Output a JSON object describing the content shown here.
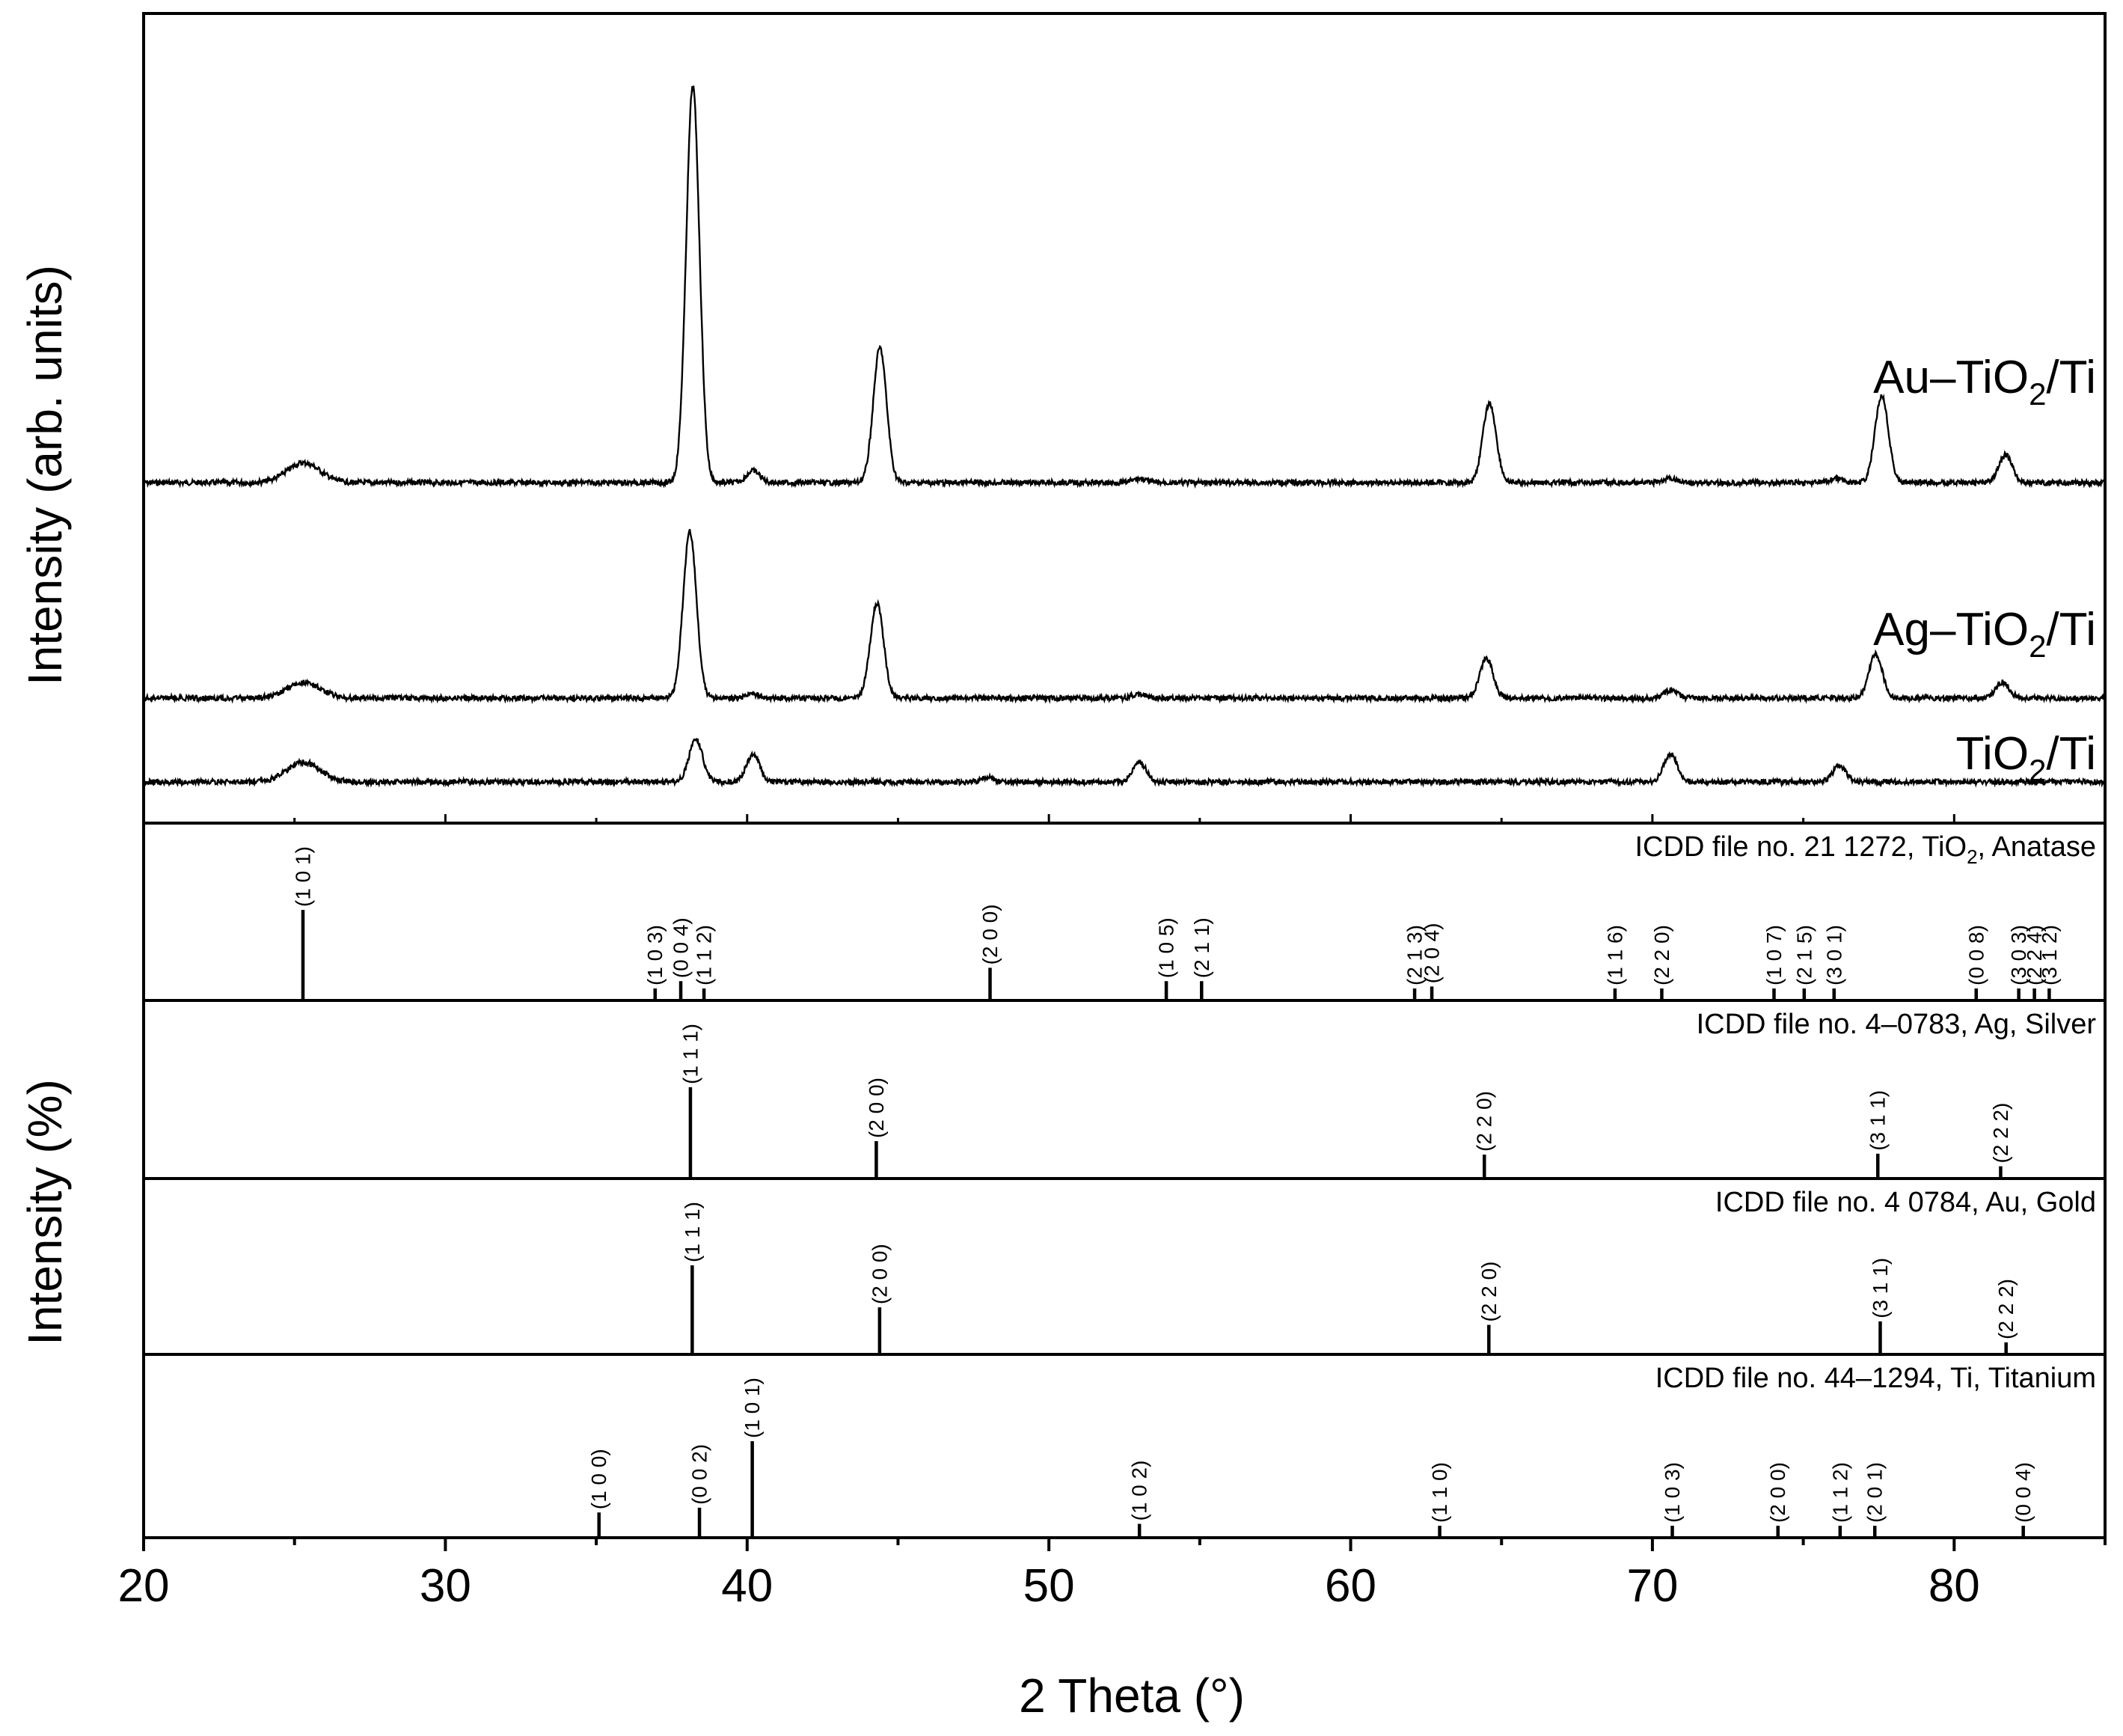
{
  "chart_data": [
    {
      "type": "line",
      "xlabel": "2 Theta (°)",
      "ylabel": "Intensity (arb. units)",
      "xlim": [
        20,
        85
      ],
      "x_ticks": [
        "20",
        "30",
        "40",
        "50",
        "60",
        "70",
        "80"
      ],
      "series": [
        {
          "name": "Au–TiO2/Ti",
          "label_parts": [
            "Au–TiO",
            "2",
            "/Ti"
          ],
          "peaks": [
            {
              "x": 25.3,
              "h": 0.05
            },
            {
              "x": 38.2,
              "h": 1.0
            },
            {
              "x": 40.2,
              "h": 0.03
            },
            {
              "x": 44.4,
              "h": 0.34
            },
            {
              "x": 53.0,
              "h": 0.01
            },
            {
              "x": 64.6,
              "h": 0.2
            },
            {
              "x": 70.6,
              "h": 0.01
            },
            {
              "x": 76.1,
              "h": 0.01
            },
            {
              "x": 77.6,
              "h": 0.22
            },
            {
              "x": 81.7,
              "h": 0.07
            }
          ]
        },
        {
          "name": "Ag–TiO2/Ti",
          "label_parts": [
            "Ag–TiO",
            "2",
            "/Ti"
          ],
          "peaks": [
            {
              "x": 25.3,
              "h": 0.04
            },
            {
              "x": 38.1,
              "h": 0.42
            },
            {
              "x": 40.2,
              "h": 0.01
            },
            {
              "x": 44.3,
              "h": 0.24
            },
            {
              "x": 53.0,
              "h": 0.01
            },
            {
              "x": 64.5,
              "h": 0.1
            },
            {
              "x": 70.6,
              "h": 0.02
            },
            {
              "x": 77.4,
              "h": 0.11
            },
            {
              "x": 81.6,
              "h": 0.04
            }
          ]
        },
        {
          "name": "TiO2/Ti",
          "label_parts": [
            "TiO",
            "2",
            "/Ti"
          ],
          "peaks": [
            {
              "x": 25.3,
              "h": 0.05
            },
            {
              "x": 38.3,
              "h": 0.11
            },
            {
              "x": 40.2,
              "h": 0.07
            },
            {
              "x": 48.0,
              "h": 0.01
            },
            {
              "x": 53.0,
              "h": 0.05
            },
            {
              "x": 70.6,
              "h": 0.07
            },
            {
              "x": 76.2,
              "h": 0.04
            }
          ]
        }
      ]
    },
    {
      "type": "bar",
      "xlabel": "2 Theta (°)",
      "ylabel": "Intensity (%)",
      "xlim": [
        20,
        85
      ],
      "ylim": [
        0,
        100
      ],
      "panels": [
        {
          "title": "ICDD file no. 21 1272, TiO2, Anatase",
          "title_parts": [
            "ICDD file no. 21  1272, TiO",
            "2",
            ", Anatase"
          ],
          "lines": [
            {
              "x": 25.28,
              "i": 100,
              "hkl": "(1 0 1)"
            },
            {
              "x": 36.95,
              "i": 10,
              "hkl": "(1 0 3)"
            },
            {
              "x": 37.8,
              "i": 20,
              "hkl": "(0 0 4)"
            },
            {
              "x": 38.57,
              "i": 10,
              "hkl": "(1 1 2)"
            },
            {
              "x": 48.05,
              "i": 35,
              "hkl": "(2 0 0)"
            },
            {
              "x": 53.89,
              "i": 20,
              "hkl": "(1 0 5)"
            },
            {
              "x": 55.06,
              "i": 20,
              "hkl": "(2 1 1)"
            },
            {
              "x": 62.12,
              "i": 4,
              "hkl": "(2 1 3)"
            },
            {
              "x": 62.69,
              "i": 14,
              "hkl": "(2 0 4)"
            },
            {
              "x": 68.76,
              "i": 6,
              "hkl": "(1 1 6)"
            },
            {
              "x": 70.31,
              "i": 6,
              "hkl": "(2 2 0)"
            },
            {
              "x": 74.03,
              "i": 4,
              "hkl": "(1 0 7)"
            },
            {
              "x": 75.03,
              "i": 10,
              "hkl": "(2 1 5)"
            },
            {
              "x": 76.02,
              "i": 4,
              "hkl": "(3 0 1)"
            },
            {
              "x": 80.73,
              "i": 2,
              "hkl": "(0 0 8)"
            },
            {
              "x": 82.14,
              "i": 4,
              "hkl": "(3 0 3)"
            },
            {
              "x": 82.66,
              "i": 6,
              "hkl": "(2 2 4)"
            },
            {
              "x": 83.15,
              "i": 4,
              "hkl": "(3 1 2)"
            }
          ]
        },
        {
          "title": "ICDD file no. 4–0783, Ag, Silver",
          "title_parts": [
            "ICDD file no. 4–0783, Ag, Silver",
            "",
            ""
          ],
          "lines": [
            {
              "x": 38.12,
              "i": 100,
              "hkl": "(1 1 1)"
            },
            {
              "x": 44.28,
              "i": 40,
              "hkl": "(2 0 0)"
            },
            {
              "x": 64.43,
              "i": 25,
              "hkl": "(2 2 0)"
            },
            {
              "x": 77.47,
              "i": 26,
              "hkl": "(3 1 1)"
            },
            {
              "x": 81.54,
              "i": 12,
              "hkl": "(2 2 2)"
            }
          ]
        },
        {
          "title": "ICDD file no. 4 0784, Au, Gold",
          "title_parts": [
            "ICDD file no. 4  0784, Au, Gold",
            "",
            ""
          ],
          "lines": [
            {
              "x": 38.18,
              "i": 100,
              "hkl": "(1 1 1)"
            },
            {
              "x": 44.39,
              "i": 52,
              "hkl": "(2 0 0)"
            },
            {
              "x": 64.58,
              "i": 32,
              "hkl": "(2 2 0)"
            },
            {
              "x": 77.55,
              "i": 36,
              "hkl": "(3 1 1)"
            },
            {
              "x": 81.72,
              "i": 12,
              "hkl": "(2 2 2)"
            }
          ]
        },
        {
          "title": "ICDD file no. 44–1294, Ti, Titanium",
          "title_parts": [
            "ICDD file no. 44–1294, Ti, Titanium",
            "",
            ""
          ],
          "lines": [
            {
              "x": 35.09,
              "i": 25,
              "hkl": "(1 0 0)"
            },
            {
              "x": 38.42,
              "i": 30,
              "hkl": "(0 0 2)"
            },
            {
              "x": 40.17,
              "i": 100,
              "hkl": "(1 0 1)"
            },
            {
              "x": 53.0,
              "i": 13,
              "hkl": "(1 0 2)"
            },
            {
              "x": 62.95,
              "i": 11,
              "hkl": "(1 1 0)"
            },
            {
              "x": 70.66,
              "i": 11,
              "hkl": "(1 0 3)"
            },
            {
              "x": 74.16,
              "i": 4,
              "hkl": "(2 0 0)"
            },
            {
              "x": 76.22,
              "i": 11,
              "hkl": "(1 1 2)"
            },
            {
              "x": 77.37,
              "i": 9,
              "hkl": "(2 0 1)"
            },
            {
              "x": 82.29,
              "i": 3,
              "hkl": "(0 0 4)"
            }
          ]
        }
      ]
    }
  ]
}
